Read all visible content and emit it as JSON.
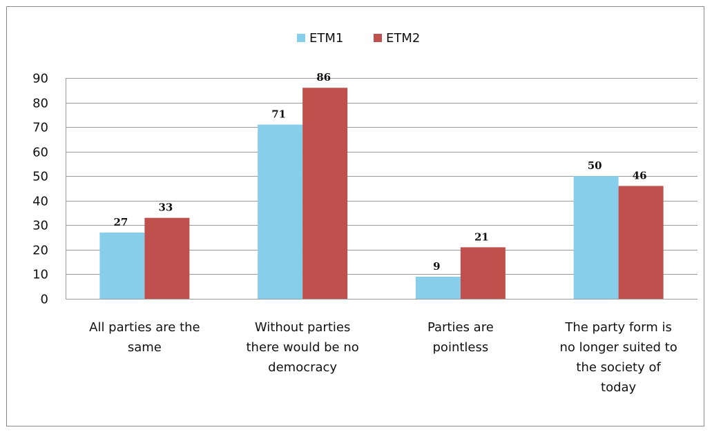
{
  "chart_data": {
    "type": "bar",
    "categories": [
      [
        "All parties are the",
        "same"
      ],
      [
        "Without parties",
        "there would be no",
        "democracy"
      ],
      [
        "Parties are",
        "pointless"
      ],
      [
        "The party form is",
        "no longer suited to",
        "the society of",
        "today"
      ]
    ],
    "series": [
      {
        "name": "ETM1",
        "color": "#87CEEB",
        "values": [
          27,
          71,
          9,
          50
        ]
      },
      {
        "name": "ETM2",
        "color": "#C0504D",
        "values": [
          33,
          86,
          21,
          46
        ]
      }
    ],
    "ylim": [
      0,
      90
    ],
    "yticks": [
      0,
      10,
      20,
      30,
      40,
      50,
      60,
      70,
      80,
      90
    ],
    "grid": true,
    "legend": "top-center",
    "gridline_color": "#9a9a9a"
  }
}
